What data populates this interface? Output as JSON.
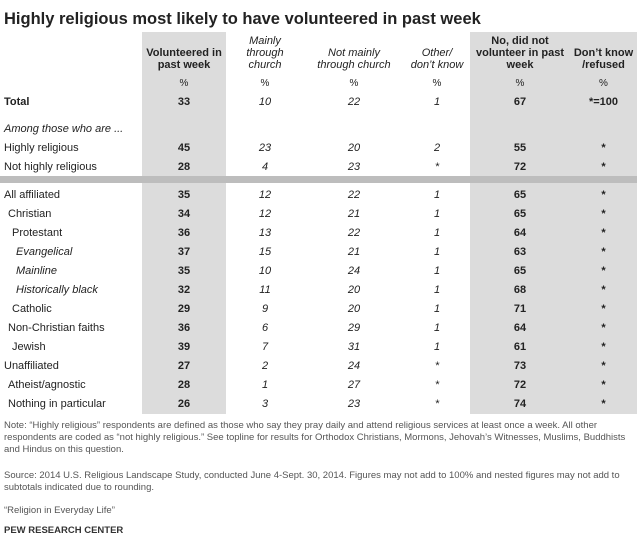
{
  "title": "Highly religious most likely to have volunteered in past week",
  "headers": {
    "c1": "Volunteered in\npast week",
    "c2": "Mainly\nthrough\nchurch",
    "c3": "Not mainly\nthrough church",
    "c4": "Other/\ndon’t know",
    "c5": "No, did not\nvolunteer in past\nweek",
    "c6": "Don’t know\n/refused",
    "pct": "%"
  },
  "rows": [
    {
      "label": "Total",
      "bold": true,
      "indent": 0,
      "italic": false,
      "values": [
        "33",
        "10",
        "22",
        "1",
        "67",
        "*=100"
      ]
    },
    {
      "label": "Among those who are ...",
      "bold": false,
      "indent": 0,
      "italic": true,
      "values": [
        "",
        "",
        "",
        "",
        "",
        ""
      ]
    },
    {
      "label": "Highly religious",
      "bold": false,
      "indent": 0,
      "italic": false,
      "values": [
        "45",
        "23",
        "20",
        "2",
        "55",
        "*"
      ]
    },
    {
      "label": "Not highly religious",
      "bold": false,
      "indent": 0,
      "italic": false,
      "values": [
        "28",
        "4",
        "23",
        "*",
        "72",
        "*"
      ]
    },
    {
      "label": "All affiliated",
      "bold": false,
      "indent": 0,
      "italic": false,
      "values": [
        "35",
        "12",
        "22",
        "1",
        "65",
        "*"
      ]
    },
    {
      "label": "Christian",
      "bold": false,
      "indent": 1,
      "italic": false,
      "values": [
        "34",
        "12",
        "21",
        "1",
        "65",
        "*"
      ]
    },
    {
      "label": "Protestant",
      "bold": false,
      "indent": 2,
      "italic": false,
      "values": [
        "36",
        "13",
        "22",
        "1",
        "64",
        "*"
      ]
    },
    {
      "label": "Evangelical",
      "bold": false,
      "indent": 3,
      "italic": true,
      "values": [
        "37",
        "15",
        "21",
        "1",
        "63",
        "*"
      ]
    },
    {
      "label": "Mainline",
      "bold": false,
      "indent": 3,
      "italic": true,
      "values": [
        "35",
        "10",
        "24",
        "1",
        "65",
        "*"
      ]
    },
    {
      "label": "Historically black",
      "bold": false,
      "indent": 3,
      "italic": true,
      "values": [
        "32",
        "11",
        "20",
        "1",
        "68",
        "*"
      ]
    },
    {
      "label": "Catholic",
      "bold": false,
      "indent": 2,
      "italic": false,
      "values": [
        "29",
        "9",
        "20",
        "1",
        "71",
        "*"
      ]
    },
    {
      "label": "Non-Christian faiths",
      "bold": false,
      "indent": 1,
      "italic": false,
      "values": [
        "36",
        "6",
        "29",
        "1",
        "64",
        "*"
      ]
    },
    {
      "label": "Jewish",
      "bold": false,
      "indent": 2,
      "italic": false,
      "values": [
        "39",
        "7",
        "31",
        "1",
        "61",
        "*"
      ]
    },
    {
      "label": "Unaffiliated",
      "bold": false,
      "indent": 0,
      "italic": false,
      "values": [
        "27",
        "2",
        "24",
        "*",
        "73",
        "*"
      ]
    },
    {
      "label": "Atheist/agnostic",
      "bold": false,
      "indent": 1,
      "italic": false,
      "values": [
        "28",
        "1",
        "27",
        "*",
        "72",
        "*"
      ]
    },
    {
      "label": "Nothing in particular",
      "bold": false,
      "indent": 1,
      "italic": false,
      "values": [
        "26",
        "3",
        "23",
        "*",
        "74",
        "*"
      ]
    }
  ],
  "note": "Note: “Highly religious” respondents are defined as those who say they pray daily and attend religious services at least once a week. All other respondents are coded as “not highly religious.” See topline for results for Orthodox Christians, Mormons, Jehovah’s Witnesses, Muslims, Buddhists and Hindus on this question.",
  "source": "Source: 2014 U.S. Religious Landscape Study, conducted June 4-Sept. 30, 2014. Figures may not add to 100% and nested figures may not add to subtotals indicated due to rounding.",
  "report": "“Religion in Everyday Life”",
  "footer": "PEW RESEARCH CENTER",
  "colors": {
    "shade": "#dcdcdc",
    "divider": "#bdbdbd"
  }
}
